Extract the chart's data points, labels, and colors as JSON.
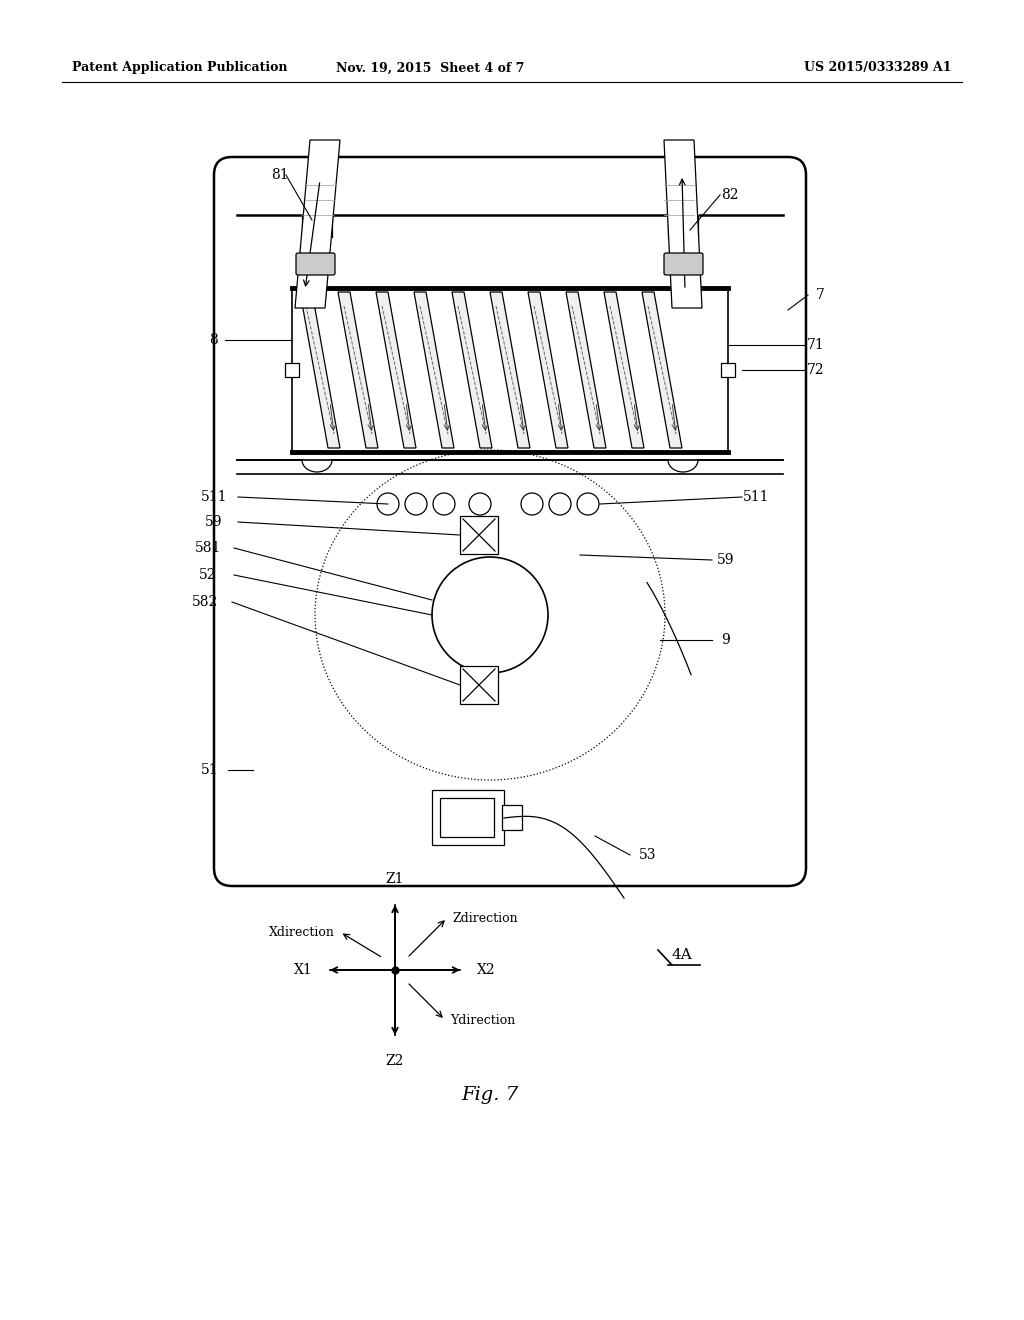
{
  "bg_color": "#ffffff",
  "header_left": "Patent Application Publication",
  "header_mid": "Nov. 19, 2015  Sheet 4 of 7",
  "header_right": "US 2015/0333289 A1",
  "fig_label": "Fig. 7"
}
